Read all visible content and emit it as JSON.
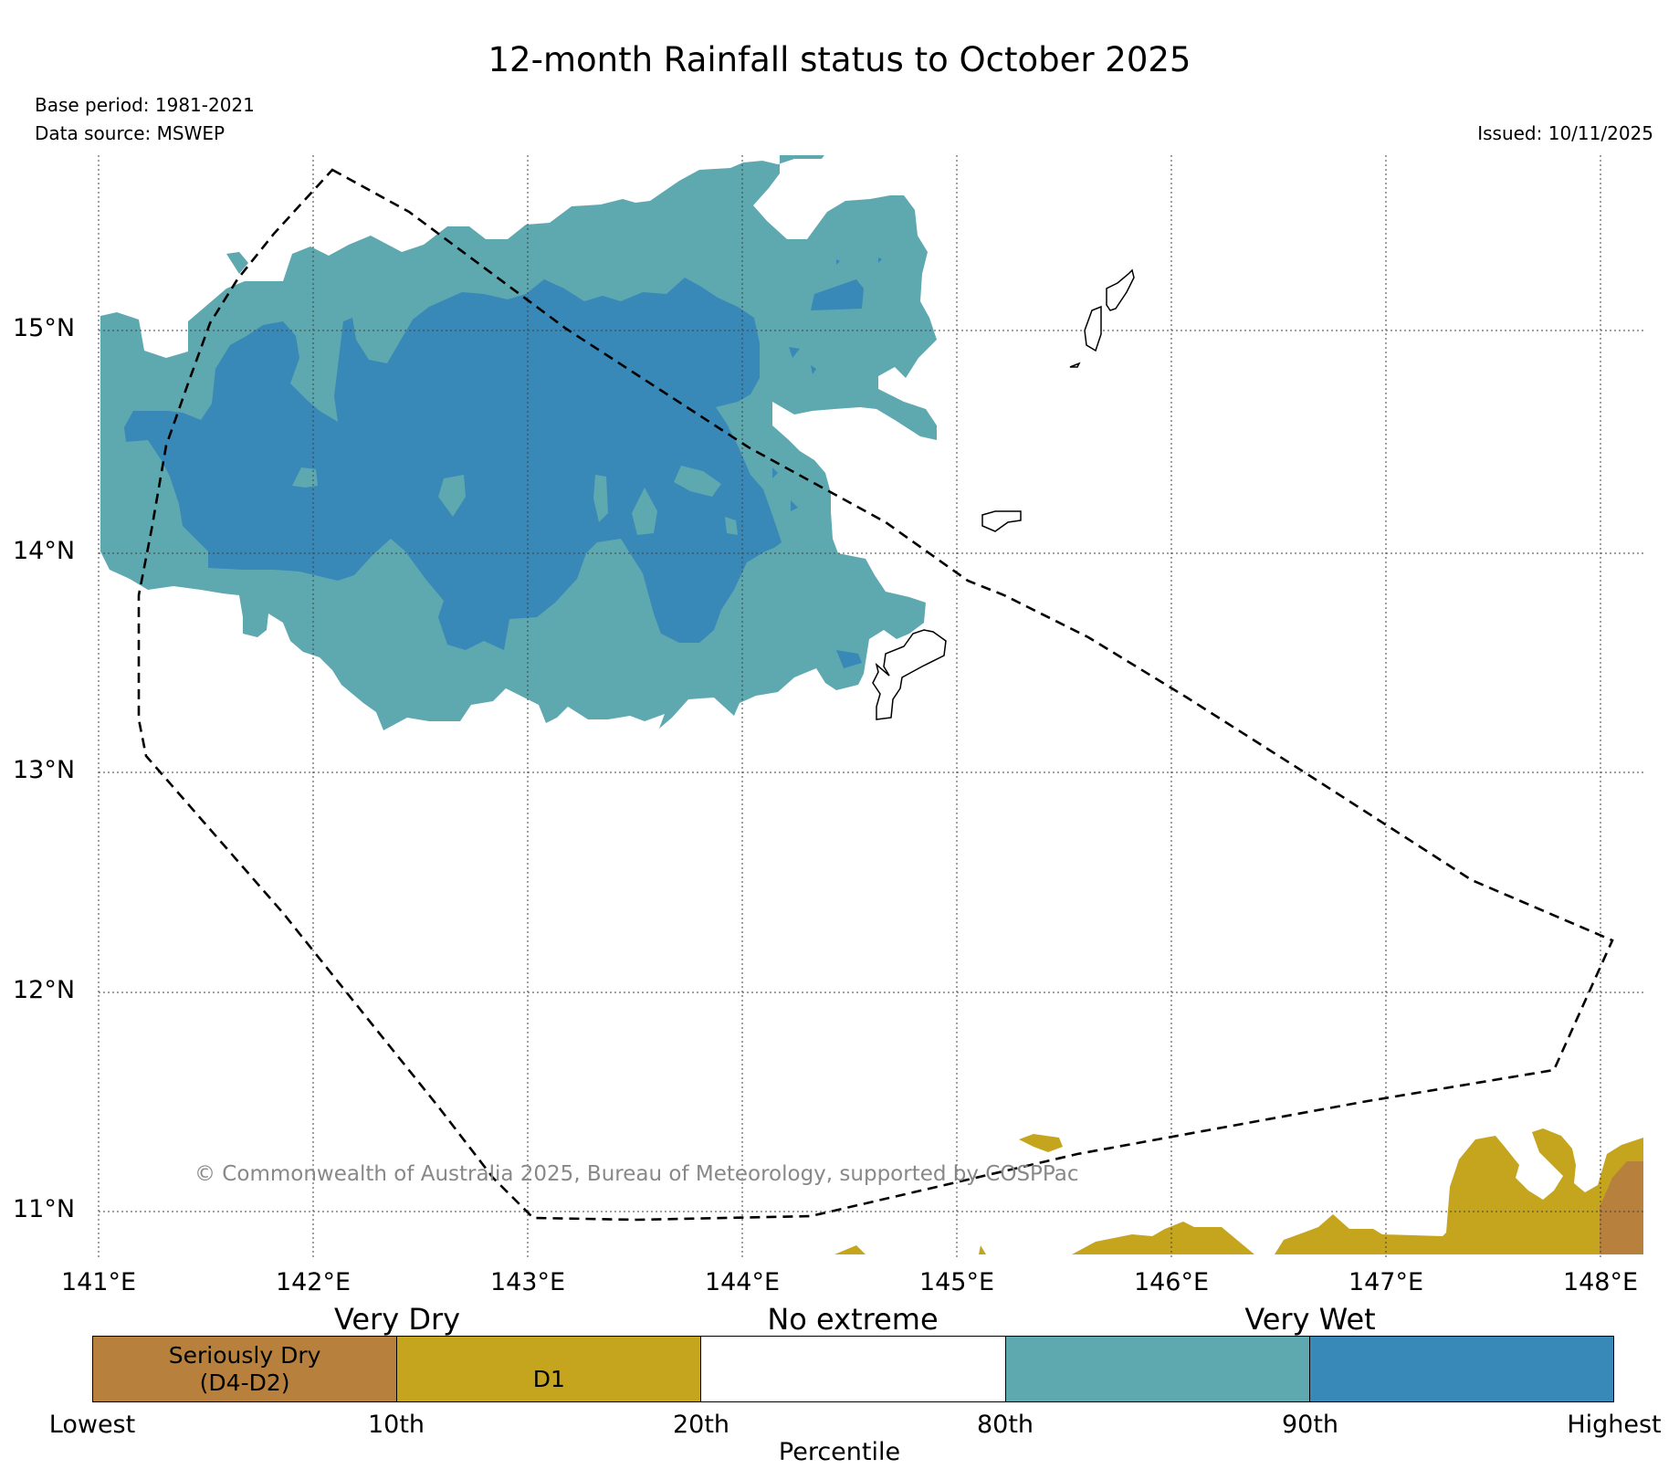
{
  "header": {
    "title": "12-month Rainfall status to October 2025",
    "base_period": "Base period: 1981-2021",
    "data_source": "Data source: MSWEP",
    "issued": "Issued: 10/11/2025"
  },
  "map": {
    "latitudes": [
      "15°N",
      "14°N",
      "13°N",
      "12°N",
      "11°N"
    ],
    "longitudes": [
      "141°E",
      "142°E",
      "143°E",
      "144°E",
      "145°E",
      "146°E",
      "147°E",
      "148°E"
    ],
    "copyright": "© Commonwealth of Australia 2025, Bureau of Meteorology, supported by COSPPac"
  },
  "legend": {
    "categories": [
      "Very Dry",
      "No extreme",
      "Very Wet"
    ],
    "segments": [
      {
        "label": "Seriously Dry\n(D4-D2)",
        "color": "#b8803d"
      },
      {
        "label": "D1",
        "color": "#c4a51d"
      },
      {
        "label": "",
        "color": "#ffffff"
      },
      {
        "label": "",
        "color": "#5ea8b0"
      },
      {
        "label": "",
        "color": "#3888b8"
      }
    ],
    "ticks": [
      "Lowest",
      "10th",
      "20th",
      "80th",
      "90th",
      "Highest"
    ],
    "axis_label": "Percentile"
  },
  "colors": {
    "very_wet_90": "#3888b8",
    "wet_80": "#5ea8b0",
    "d1": "#c4a51d",
    "seriously_dry": "#b8803d"
  }
}
